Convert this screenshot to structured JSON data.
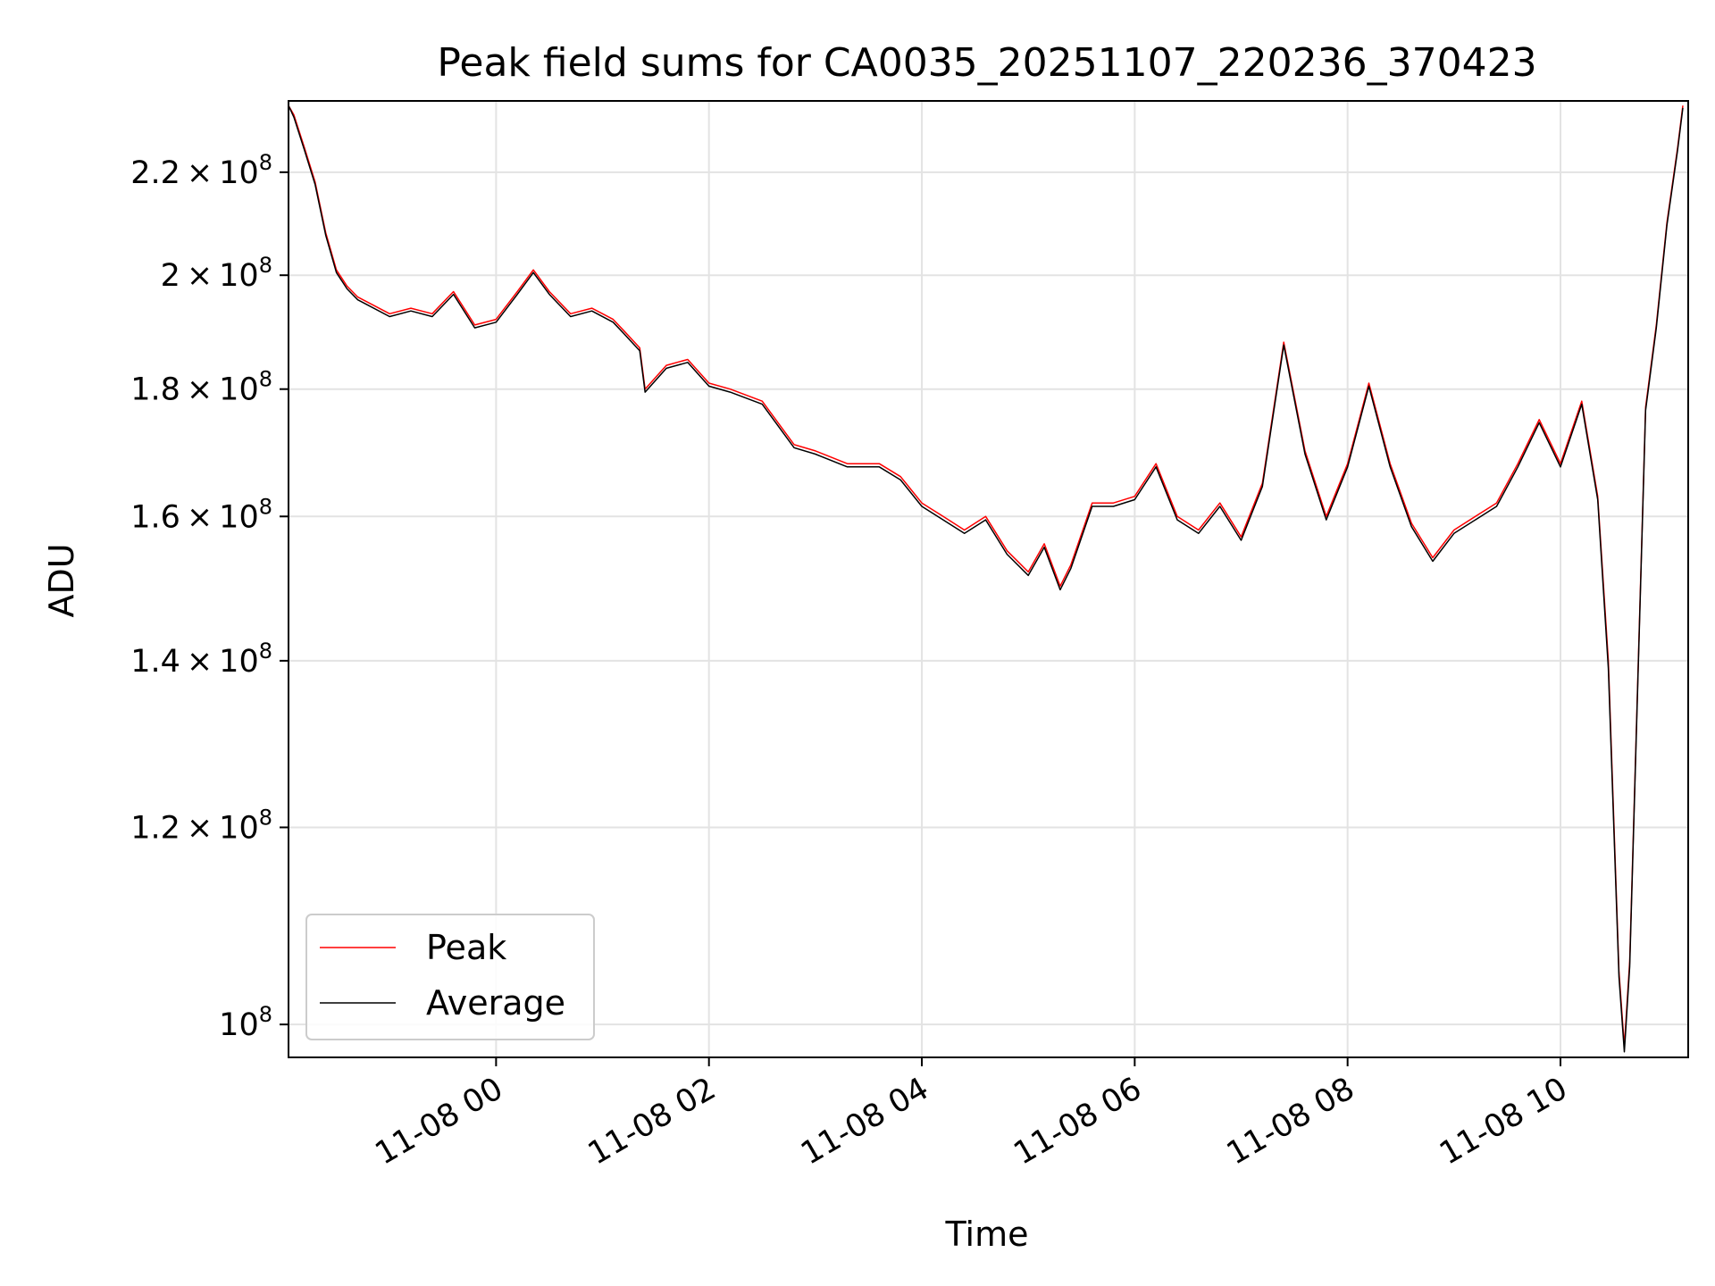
{
  "chart_data": {
    "type": "line",
    "title": "Peak field sums for CA0035_20251107_220236_370423",
    "xlabel": "Time",
    "ylabel": "ADU",
    "yscale": "log",
    "ylim": [
      97000000,
      235000000
    ],
    "xlim_hours": [
      -1.95,
      11.2
    ],
    "x_unit": "hours relative to 11-08 00:00",
    "legend_position": "lower-left",
    "grid": true,
    "x_ticks": [
      {
        "value": 0,
        "label": "11-08 00"
      },
      {
        "value": 2,
        "label": "11-08 02"
      },
      {
        "value": 4,
        "label": "11-08 04"
      },
      {
        "value": 6,
        "label": "11-08 06"
      },
      {
        "value": 8,
        "label": "11-08 08"
      },
      {
        "value": 10,
        "label": "11-08 10"
      }
    ],
    "y_ticks": [
      {
        "value": 100000000,
        "mant": "",
        "exp": "8"
      },
      {
        "value": 120000000,
        "mant": "1.2",
        "exp": "8"
      },
      {
        "value": 140000000,
        "mant": "1.4",
        "exp": "8"
      },
      {
        "value": 160000000,
        "mant": "1.6",
        "exp": "8"
      },
      {
        "value": 180000000,
        "mant": "1.8",
        "exp": "8"
      },
      {
        "value": 200000000,
        "mant": "2",
        "exp": "8"
      },
      {
        "value": 220000000,
        "mant": "2.2",
        "exp": "8"
      }
    ],
    "x": [
      -1.95,
      -1.9,
      -1.8,
      -1.7,
      -1.6,
      -1.5,
      -1.4,
      -1.3,
      -1.2,
      -1.0,
      -0.8,
      -0.6,
      -0.4,
      -0.2,
      0.0,
      0.2,
      0.35,
      0.5,
      0.7,
      0.9,
      1.1,
      1.2,
      1.35,
      1.4,
      1.6,
      1.8,
      2.0,
      2.2,
      2.5,
      2.8,
      3.0,
      3.3,
      3.6,
      3.8,
      4.0,
      4.2,
      4.4,
      4.6,
      4.8,
      5.0,
      5.15,
      5.3,
      5.4,
      5.6,
      5.8,
      6.0,
      6.2,
      6.4,
      6.6,
      6.8,
      7.0,
      7.2,
      7.4,
      7.6,
      7.8,
      8.0,
      8.2,
      8.4,
      8.6,
      8.8,
      9.0,
      9.2,
      9.4,
      9.6,
      9.8,
      10.0,
      10.2,
      10.35,
      10.45,
      10.55,
      10.6,
      10.65,
      10.8,
      10.9,
      11.0,
      11.1,
      11.15
    ],
    "series": [
      {
        "name": "Peak",
        "color": "#ff0000",
        "values": [
          234000000,
          232000000,
          225000000,
          218000000,
          208000000,
          201000000,
          198000000,
          196000000,
          195000000,
          193000000,
          194000000,
          193000000,
          197000000,
          191000000,
          192000000,
          197000000,
          201000000,
          197000000,
          193000000,
          194000000,
          192000000,
          190000000,
          187000000,
          180000000,
          184000000,
          185000000,
          181000000,
          180000000,
          178000000,
          171000000,
          170000000,
          168000000,
          168000000,
          166000000,
          162000000,
          160000000,
          158000000,
          160000000,
          155000000,
          152000000,
          156000000,
          150000000,
          153000000,
          162000000,
          162000000,
          163000000,
          168000000,
          160000000,
          158000000,
          162000000,
          157000000,
          165000000,
          188000000,
          170000000,
          160000000,
          168000000,
          181000000,
          168000000,
          159000000,
          154000000,
          158000000,
          160000000,
          162000000,
          168000000,
          175000000,
          168000000,
          178000000,
          163000000,
          140000000,
          105000000,
          98000000,
          106000000,
          177000000,
          191000000,
          210000000,
          225000000,
          234000000
        ]
      },
      {
        "name": "Average",
        "color": "#000000",
        "values": [
          234000000,
          231500000,
          224500000,
          217500000,
          207500000,
          200500000,
          197500000,
          195500000,
          194500000,
          192500000,
          193500000,
          192500000,
          196500000,
          190500000,
          191500000,
          196500000,
          200500000,
          196500000,
          192500000,
          193500000,
          191500000,
          189500000,
          186500000,
          179500000,
          183500000,
          184500000,
          180500000,
          179500000,
          177500000,
          170500000,
          169500000,
          167500000,
          167500000,
          165500000,
          161500000,
          159500000,
          157500000,
          159500000,
          154500000,
          151500000,
          155500000,
          149500000,
          152500000,
          161500000,
          161500000,
          162500000,
          167500000,
          159500000,
          157500000,
          161500000,
          156500000,
          164500000,
          187500000,
          169500000,
          159500000,
          167500000,
          180500000,
          167500000,
          158500000,
          153500000,
          157500000,
          159500000,
          161500000,
          167500000,
          174500000,
          167500000,
          177500000,
          162500000,
          139000000,
          104500000,
          97500000,
          105500000,
          176500000,
          190500000,
          209500000,
          224500000,
          233500000
        ]
      }
    ]
  }
}
